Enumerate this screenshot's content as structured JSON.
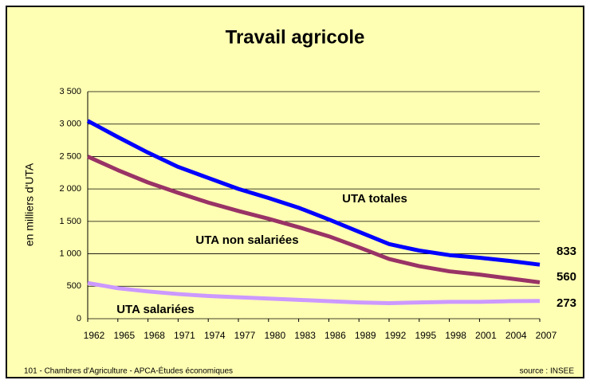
{
  "chart_data": {
    "type": "line",
    "title": "Travail agricole",
    "y_label": "en milliers d'UTA",
    "categories": [
      "1962",
      "1965",
      "1968",
      "1971",
      "1974",
      "1977",
      "1980",
      "1983",
      "1986",
      "1989",
      "1992",
      "1995",
      "1998",
      "2001",
      "2004",
      "2007"
    ],
    "series": [
      {
        "name": "UTA totales",
        "color": "#0000ff",
        "values": [
          3050,
          2800,
          2560,
          2340,
          2170,
          2000,
          1860,
          1710,
          1530,
          1340,
          1150,
          1050,
          980,
          940,
          890,
          833
        ]
      },
      {
        "name": "UTA non salariées",
        "color": "#993366",
        "values": [
          2500,
          2290,
          2100,
          1940,
          1790,
          1660,
          1540,
          1410,
          1270,
          1100,
          920,
          810,
          730,
          680,
          620,
          560
        ]
      },
      {
        "name": "UTA salariées",
        "color": "#cc99ff",
        "values": [
          550,
          470,
          420,
          380,
          350,
          330,
          310,
          290,
          270,
          250,
          240,
          250,
          260,
          260,
          270,
          273
        ]
      }
    ],
    "ylim": [
      0,
      3500
    ],
    "yticks": [
      0,
      500,
      {
        "value": 1000,
        "label": "1 000"
      },
      {
        "value": 1500,
        "label": "1 500"
      },
      {
        "value": 2000,
        "label": "2 000"
      },
      {
        "value": 2500,
        "label": "2 500"
      },
      {
        "value": 3000,
        "label": "3 000"
      },
      {
        "value": 3500,
        "label": "3 500"
      }
    ],
    "grid": true,
    "footer_left": "101 - Chambres d'Agriculture - APCA-Études économiques",
    "footer_right": "source : INSEE"
  }
}
